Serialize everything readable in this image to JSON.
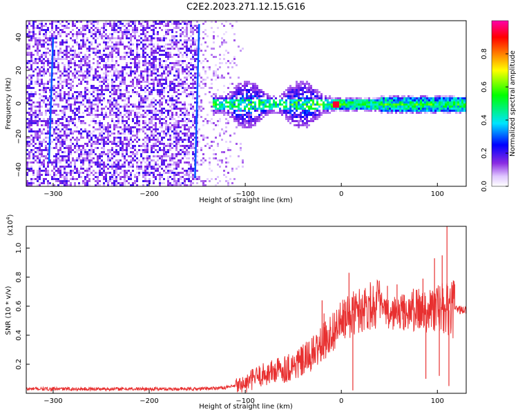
{
  "title": "C2E2.2023.271.12.15.G16",
  "chart_data": [
    {
      "type": "heatmap",
      "xlabel": "Height of straight line (km)",
      "ylabel": "Frequency (Hz)",
      "xlim": [
        -328,
        130
      ],
      "ylim": [
        -50,
        50
      ],
      "xticks": [
        -300,
        -200,
        -100,
        0,
        100
      ],
      "yticks": [
        -40,
        -20,
        0,
        20,
        40
      ],
      "colorbar": {
        "label": "Normalized spectral amplitude",
        "range": [
          0.0,
          1.0
        ],
        "ticks": [
          0.0,
          0.2,
          0.4,
          0.6,
          0.8
        ],
        "colormap": [
          "#ffffff",
          "#e0c8ff",
          "#8a2be2",
          "#0000ff",
          "#00e5ff",
          "#00ff00",
          "#ffff00",
          "#ff8000",
          "#ff0000",
          "#ff00aa"
        ]
      },
      "regions": [
        {
          "x": [
            -328,
            -150
          ],
          "freq_spread": [
            -50,
            50
          ],
          "amplitude": 0.08
        },
        {
          "x": [
            -150,
            -100
          ],
          "freq_spread": [
            -50,
            50
          ],
          "amplitude": 0.06
        },
        {
          "x": [
            -130,
            -15
          ],
          "freq_spread": [
            -15,
            15
          ],
          "amplitude": 0.2
        },
        {
          "x": [
            -15,
            130
          ],
          "freq_spread": [
            -3,
            3
          ],
          "amplitude": 0.5
        },
        {
          "x": [
            -10,
            -3
          ],
          "freq_spread": [
            -1,
            1
          ],
          "amplitude": 0.95
        }
      ],
      "streaks": [
        {
          "x": -300,
          "y": [
            -35,
            40
          ]
        },
        {
          "x": -148,
          "y": [
            -45,
            48
          ]
        }
      ]
    },
    {
      "type": "line",
      "xlabel": "Height of straight line (km)",
      "ylabel": "SNR (10 * v/v)",
      "y_multiplier": "(x10^4)",
      "xlim": [
        -328,
        130
      ],
      "ylim": [
        0,
        1.15
      ],
      "xticks": [
        -300,
        -200,
        -100,
        0,
        100
      ],
      "yticks": [
        0.2,
        0.4,
        0.6,
        0.8,
        1.0
      ],
      "series": [
        {
          "color": "#e83030",
          "x": [
            -328,
            -300,
            -250,
            -200,
            -150,
            -120,
            -100,
            -90,
            -80,
            -70,
            -60,
            -50,
            -40,
            -30,
            -20,
            -10,
            0,
            10,
            20,
            30,
            40,
            50,
            55,
            60,
            70,
            80,
            90,
            100,
            110,
            120,
            130
          ],
          "y": [
            0.03,
            0.03,
            0.03,
            0.03,
            0.03,
            0.04,
            0.06,
            0.11,
            0.13,
            0.15,
            0.17,
            0.19,
            0.22,
            0.27,
            0.34,
            0.42,
            0.49,
            0.54,
            0.58,
            0.61,
            0.62,
            0.52,
            0.56,
            0.55,
            0.56,
            0.57,
            0.58,
            0.58,
            0.57,
            0.58,
            0.57
          ]
        }
      ],
      "spikes": [
        {
          "x": -20,
          "y": 0.64
        },
        {
          "x": -18,
          "y": 0.55
        },
        {
          "x": -15,
          "y": 0.42
        },
        {
          "x": 8,
          "y": 0.83
        },
        {
          "x": 12,
          "y": 0.02
        },
        {
          "x": 30,
          "y": 0.67
        },
        {
          "x": 48,
          "y": 0.74
        },
        {
          "x": 58,
          "y": 0.75
        },
        {
          "x": 65,
          "y": 0.68
        },
        {
          "x": 75,
          "y": 0.72
        },
        {
          "x": 85,
          "y": 0.79
        },
        {
          "x": 88,
          "y": 0.1
        },
        {
          "x": 97,
          "y": 0.93
        },
        {
          "x": 102,
          "y": 0.12
        },
        {
          "x": 105,
          "y": 0.95
        },
        {
          "x": 110,
          "y": 1.15
        },
        {
          "x": 112,
          "y": 0.05
        },
        {
          "x": 118,
          "y": 0.75
        }
      ]
    }
  ]
}
